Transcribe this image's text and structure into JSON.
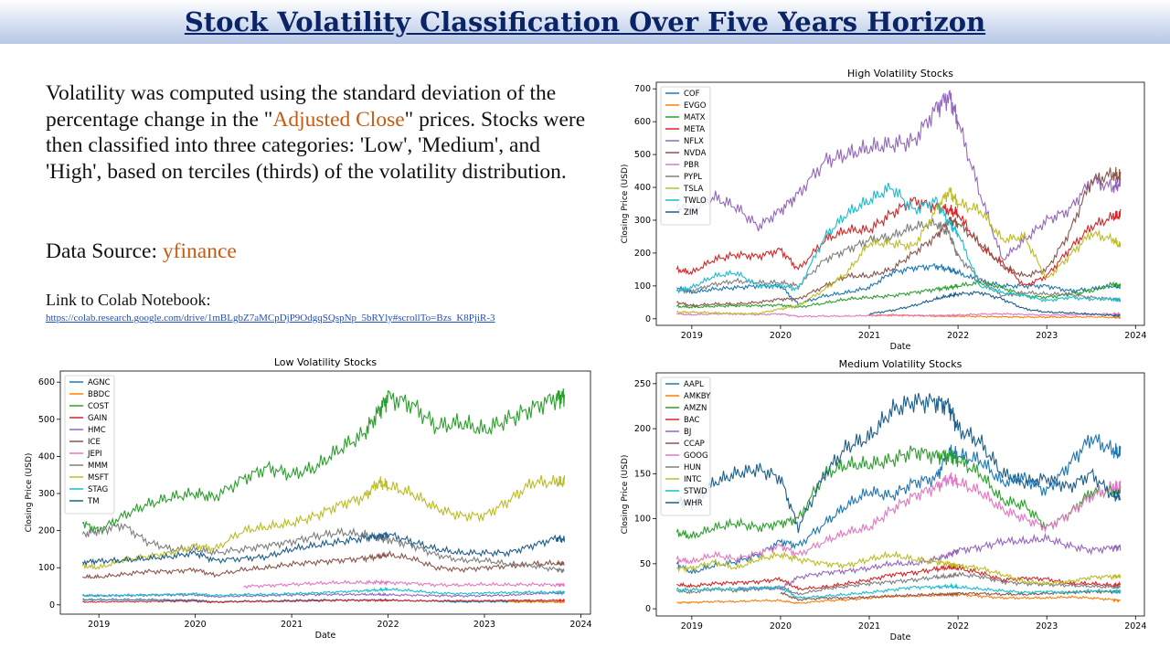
{
  "page": {
    "title": "Stock Volatility Classification Over Five Years Horizon",
    "description": {
      "part1": "Volatility was computed using the standard deviation of the percentage change in the \"",
      "highlight": "Adjusted Close",
      "part2": "\" prices. Stocks were then classified into three categories: 'Low', 'Medium', and 'High', based on terciles (thirds) of the volatility distribution."
    },
    "source": {
      "label": "Data Source: ",
      "value": "yfinance"
    },
    "colab": {
      "label": "Link to Colab Notebook:",
      "url": "https://colab.research.google.com/drive/1mBLgbZ7aMCpDjP9OdgqSQspNp_5bRYly#scrollTo=Bzs_K8PjiR-3"
    },
    "colors": {
      "title": "#0b2466",
      "highlight": "#c55a11",
      "link": "#1f4fbf"
    }
  },
  "chart_data": [
    {
      "type": "line",
      "title": "High Volatility Stocks",
      "xlabel": "Date",
      "ylabel": "Closing Price (USD)",
      "xlim": [
        2018.6,
        2024.1
      ],
      "ylim": [
        -20,
        720
      ],
      "xticks": [
        2019,
        2020,
        2021,
        2022,
        2023,
        2024
      ],
      "yticks": [
        0,
        100,
        200,
        300,
        400,
        500,
        600,
        700
      ],
      "legend": "top-left",
      "x": [
        2018.83,
        2019.0,
        2019.25,
        2019.5,
        2019.75,
        2020.0,
        2020.2,
        2020.5,
        2020.75,
        2021.0,
        2021.25,
        2021.5,
        2021.75,
        2021.9,
        2022.0,
        2022.25,
        2022.5,
        2022.75,
        2023.0,
        2023.25,
        2023.5,
        2023.75,
        2023.83
      ],
      "series": [
        {
          "name": "COF",
          "color": "#1f77b4",
          "values": [
            95,
            80,
            90,
            95,
            100,
            100,
            45,
            70,
            80,
            95,
            140,
            155,
            160,
            150,
            140,
            115,
            100,
            100,
            100,
            85,
            90,
            100,
            95
          ]
        },
        {
          "name": "EVGO",
          "color": "#ff7f0e",
          "values": [
            null,
            null,
            null,
            null,
            null,
            null,
            null,
            null,
            null,
            10,
            12,
            10,
            8,
            8,
            8,
            7,
            6,
            5,
            5,
            5,
            6,
            4,
            4
          ]
        },
        {
          "name": "MATX",
          "color": "#2ca02c",
          "values": [
            38,
            35,
            38,
            40,
            40,
            42,
            35,
            48,
            60,
            65,
            70,
            80,
            90,
            95,
            100,
            110,
            95,
            70,
            65,
            75,
            85,
            105,
            100
          ]
        },
        {
          "name": "META",
          "color": "#d62728",
          "values": [
            150,
            140,
            180,
            195,
            190,
            210,
            150,
            240,
            270,
            270,
            320,
            360,
            340,
            330,
            320,
            220,
            170,
            100,
            130,
            210,
            280,
            310,
            315
          ]
        },
        {
          "name": "NFLX",
          "color": "#9467bd",
          "values": [
            340,
            330,
            370,
            340,
            280,
            330,
            380,
            480,
            500,
            520,
            530,
            540,
            640,
            680,
            600,
            380,
            180,
            240,
            300,
            330,
            420,
            400,
            410
          ]
        },
        {
          "name": "NVDA",
          "color": "#8c564b",
          "values": [
            50,
            40,
            45,
            45,
            50,
            60,
            60,
            100,
            130,
            130,
            150,
            200,
            250,
            300,
            290,
            230,
            160,
            130,
            150,
            260,
            420,
            440,
            430
          ]
        },
        {
          "name": "PBR",
          "color": "#e377c2",
          "values": [
            15,
            12,
            15,
            15,
            13,
            15,
            7,
            8,
            8,
            10,
            10,
            10,
            10,
            10,
            11,
            14,
            15,
            13,
            11,
            12,
            14,
            15,
            14
          ]
        },
        {
          "name": "PYPL",
          "color": "#7f7f7f",
          "values": [
            85,
            85,
            105,
            115,
            110,
            110,
            100,
            180,
            210,
            240,
            250,
            280,
            290,
            260,
            190,
            120,
            70,
            80,
            75,
            75,
            65,
            60,
            58
          ]
        },
        {
          "name": "TSLA",
          "color": "#bcbd22",
          "values": [
            20,
            20,
            18,
            15,
            16,
            30,
            40,
            90,
            140,
            230,
            230,
            220,
            330,
            390,
            350,
            330,
            240,
            250,
            120,
            190,
            260,
            240,
            220
          ]
        },
        {
          "name": "TWLO",
          "color": "#17becf",
          "values": [
            85,
            95,
            130,
            140,
            100,
            100,
            90,
            250,
            320,
            360,
            400,
            330,
            360,
            290,
            260,
            100,
            80,
            70,
            55,
            65,
            60,
            60,
            55
          ]
        },
        {
          "name": "ZIM",
          "color": "#1f5f8b",
          "values": [
            null,
            null,
            null,
            null,
            null,
            null,
            null,
            null,
            null,
            15,
            25,
            40,
            60,
            70,
            75,
            80,
            60,
            30,
            20,
            18,
            14,
            10,
            10
          ]
        }
      ]
    },
    {
      "type": "line",
      "title": "Low Volatility Stocks",
      "xlabel": "Date",
      "ylabel": "Closing Price (USD)",
      "xlim": [
        2018.6,
        2024.1
      ],
      "ylim": [
        -25,
        630
      ],
      "xticks": [
        2019,
        2020,
        2021,
        2022,
        2023,
        2024
      ],
      "yticks": [
        0,
        100,
        200,
        300,
        400,
        500,
        600
      ],
      "legend": "top-left",
      "x": [
        2018.83,
        2019.0,
        2019.25,
        2019.5,
        2019.75,
        2020.0,
        2020.2,
        2020.5,
        2020.75,
        2021.0,
        2021.25,
        2021.5,
        2021.75,
        2021.9,
        2022.0,
        2022.25,
        2022.5,
        2022.75,
        2023.0,
        2023.25,
        2023.5,
        2023.75,
        2023.83
      ],
      "series": [
        {
          "name": "AGNC",
          "color": "#1f77b4",
          "values": [
            14,
            14,
            14,
            14,
            13,
            13,
            8,
            10,
            10,
            12,
            13,
            13,
            13,
            13,
            13,
            11,
            10,
            8,
            9,
            9,
            9,
            8,
            8
          ]
        },
        {
          "name": "BBDC",
          "color": "#ff7f0e",
          "values": [
            null,
            null,
            null,
            null,
            null,
            null,
            null,
            null,
            null,
            null,
            null,
            null,
            null,
            null,
            null,
            null,
            null,
            null,
            null,
            8,
            8,
            8,
            8
          ]
        },
        {
          "name": "COST",
          "color": "#2ca02c",
          "values": [
            220,
            200,
            240,
            270,
            290,
            300,
            290,
            340,
            370,
            350,
            370,
            420,
            460,
            520,
            560,
            540,
            480,
            490,
            470,
            500,
            530,
            560,
            560
          ]
        },
        {
          "name": "GAIN",
          "color": "#d62728",
          "values": [
            8,
            8,
            9,
            9,
            10,
            10,
            7,
            9,
            9,
            10,
            11,
            12,
            12,
            12,
            12,
            11,
            11,
            11,
            11,
            12,
            12,
            12,
            12
          ]
        },
        {
          "name": "HMC",
          "color": "#9467bd",
          "values": [
            25,
            25,
            25,
            26,
            27,
            27,
            22,
            24,
            25,
            27,
            28,
            28,
            28,
            28,
            27,
            26,
            25,
            24,
            25,
            26,
            30,
            32,
            32
          ]
        },
        {
          "name": "ICE",
          "color": "#8c564b",
          "values": [
            75,
            75,
            82,
            90,
            90,
            95,
            80,
            95,
            100,
            110,
            115,
            120,
            125,
            130,
            135,
            125,
            100,
            95,
            100,
            105,
            110,
            112,
            110
          ]
        },
        {
          "name": "JEPI",
          "color": "#e377c2",
          "values": [
            null,
            null,
            null,
            null,
            null,
            null,
            null,
            50,
            52,
            55,
            58,
            60,
            60,
            61,
            60,
            58,
            54,
            53,
            55,
            54,
            55,
            54,
            54
          ]
        },
        {
          "name": "MMM",
          "color": "#7f7f7f",
          "values": [
            190,
            200,
            215,
            170,
            150,
            150,
            140,
            150,
            160,
            170,
            185,
            195,
            190,
            180,
            175,
            160,
            135,
            120,
            120,
            110,
            105,
            95,
            92
          ]
        },
        {
          "name": "MSFT",
          "color": "#bcbd22",
          "values": [
            105,
            100,
            120,
            130,
            140,
            160,
            150,
            200,
            210,
            220,
            240,
            270,
            290,
            330,
            320,
            300,
            260,
            240,
            240,
            280,
            330,
            330,
            330
          ]
        },
        {
          "name": "STAG",
          "color": "#17becf",
          "values": [
            25,
            24,
            26,
            27,
            28,
            30,
            25,
            28,
            28,
            30,
            32,
            35,
            38,
            40,
            42,
            38,
            32,
            30,
            32,
            33,
            34,
            33,
            33
          ]
        },
        {
          "name": "TM",
          "color": "#1f5f8b",
          "values": [
            115,
            118,
            120,
            125,
            130,
            140,
            120,
            125,
            130,
            150,
            160,
            170,
            180,
            185,
            190,
            170,
            150,
            140,
            140,
            140,
            160,
            180,
            175
          ]
        }
      ]
    },
    {
      "type": "line",
      "title": "Medium Volatility Stocks",
      "xlabel": "Date",
      "ylabel": "Closing Price (USD)",
      "xlim": [
        2018.6,
        2024.1
      ],
      "ylim": [
        -8,
        262
      ],
      "xticks": [
        2019,
        2020,
        2021,
        2022,
        2023,
        2024
      ],
      "yticks": [
        0,
        50,
        100,
        150,
        200,
        250
      ],
      "legend": "top-left",
      "x": [
        2018.83,
        2019.0,
        2019.25,
        2019.5,
        2019.75,
        2020.0,
        2020.2,
        2020.5,
        2020.75,
        2021.0,
        2021.25,
        2021.5,
        2021.75,
        2021.9,
        2022.0,
        2022.25,
        2022.5,
        2022.75,
        2023.0,
        2023.25,
        2023.5,
        2023.75,
        2023.83
      ],
      "series": [
        {
          "name": "AAPL",
          "color": "#1f77b4",
          "values": [
            50,
            40,
            48,
            52,
            60,
            75,
            70,
            95,
            115,
            130,
            125,
            140,
            145,
            175,
            170,
            165,
            140,
            145,
            130,
            160,
            190,
            175,
            172
          ]
        },
        {
          "name": "AMKBY",
          "color": "#ff7f0e",
          "values": [
            7,
            7,
            8,
            8,
            9,
            9,
            6,
            9,
            10,
            12,
            14,
            14,
            15,
            16,
            16,
            14,
            12,
            12,
            12,
            13,
            12,
            10,
            9
          ]
        },
        {
          "name": "AMZN",
          "color": "#2ca02c",
          "values": [
            85,
            80,
            90,
            95,
            90,
            95,
            100,
            150,
            160,
            160,
            165,
            175,
            170,
            170,
            165,
            150,
            120,
            115,
            90,
            105,
            130,
            130,
            130
          ]
        },
        {
          "name": "BAC",
          "color": "#d62728",
          "values": [
            27,
            25,
            28,
            29,
            30,
            33,
            22,
            24,
            28,
            32,
            38,
            40,
            44,
            46,
            45,
            40,
            32,
            34,
            33,
            28,
            28,
            26,
            27
          ]
        },
        {
          "name": "BJ",
          "color": "#9467bd",
          "values": [
            null,
            null,
            null,
            22,
            23,
            22,
            35,
            40,
            42,
            45,
            50,
            50,
            55,
            60,
            65,
            68,
            75,
            75,
            78,
            70,
            65,
            68,
            68
          ]
        },
        {
          "name": "CCAP",
          "color": "#8c564b",
          "values": [
            null,
            null,
            null,
            null,
            null,
            18,
            10,
            12,
            12,
            13,
            14,
            15,
            16,
            16,
            17,
            17,
            16,
            16,
            17,
            18,
            19,
            19,
            19
          ]
        },
        {
          "name": "GOOG",
          "color": "#e377c2",
          "values": [
            55,
            52,
            60,
            55,
            62,
            70,
            60,
            75,
            85,
            90,
            110,
            125,
            135,
            145,
            140,
            130,
            110,
            100,
            90,
            105,
            125,
            135,
            135
          ]
        },
        {
          "name": "HUN",
          "color": "#7f7f7f",
          "values": [
            20,
            18,
            22,
            20,
            22,
            24,
            16,
            22,
            25,
            28,
            30,
            32,
            35,
            36,
            38,
            36,
            30,
            28,
            27,
            26,
            25,
            24,
            24
          ]
        },
        {
          "name": "INTC",
          "color": "#bcbd22",
          "values": [
            45,
            45,
            52,
            45,
            55,
            60,
            55,
            50,
            48,
            55,
            60,
            55,
            52,
            50,
            48,
            45,
            38,
            30,
            28,
            30,
            35,
            36,
            36
          ]
        },
        {
          "name": "STWD",
          "color": "#17becf",
          "values": [
            21,
            21,
            22,
            22,
            23,
            24,
            12,
            14,
            16,
            18,
            21,
            24,
            24,
            25,
            24,
            22,
            20,
            18,
            19,
            18,
            20,
            19,
            19
          ]
        },
        {
          "name": "WHR",
          "color": "#1f5f8b",
          "values": [
            120,
            115,
            140,
            150,
            155,
            145,
            90,
            150,
            180,
            190,
            220,
            230,
            230,
            225,
            200,
            185,
            150,
            140,
            145,
            135,
            150,
            125,
            125
          ]
        }
      ]
    }
  ]
}
